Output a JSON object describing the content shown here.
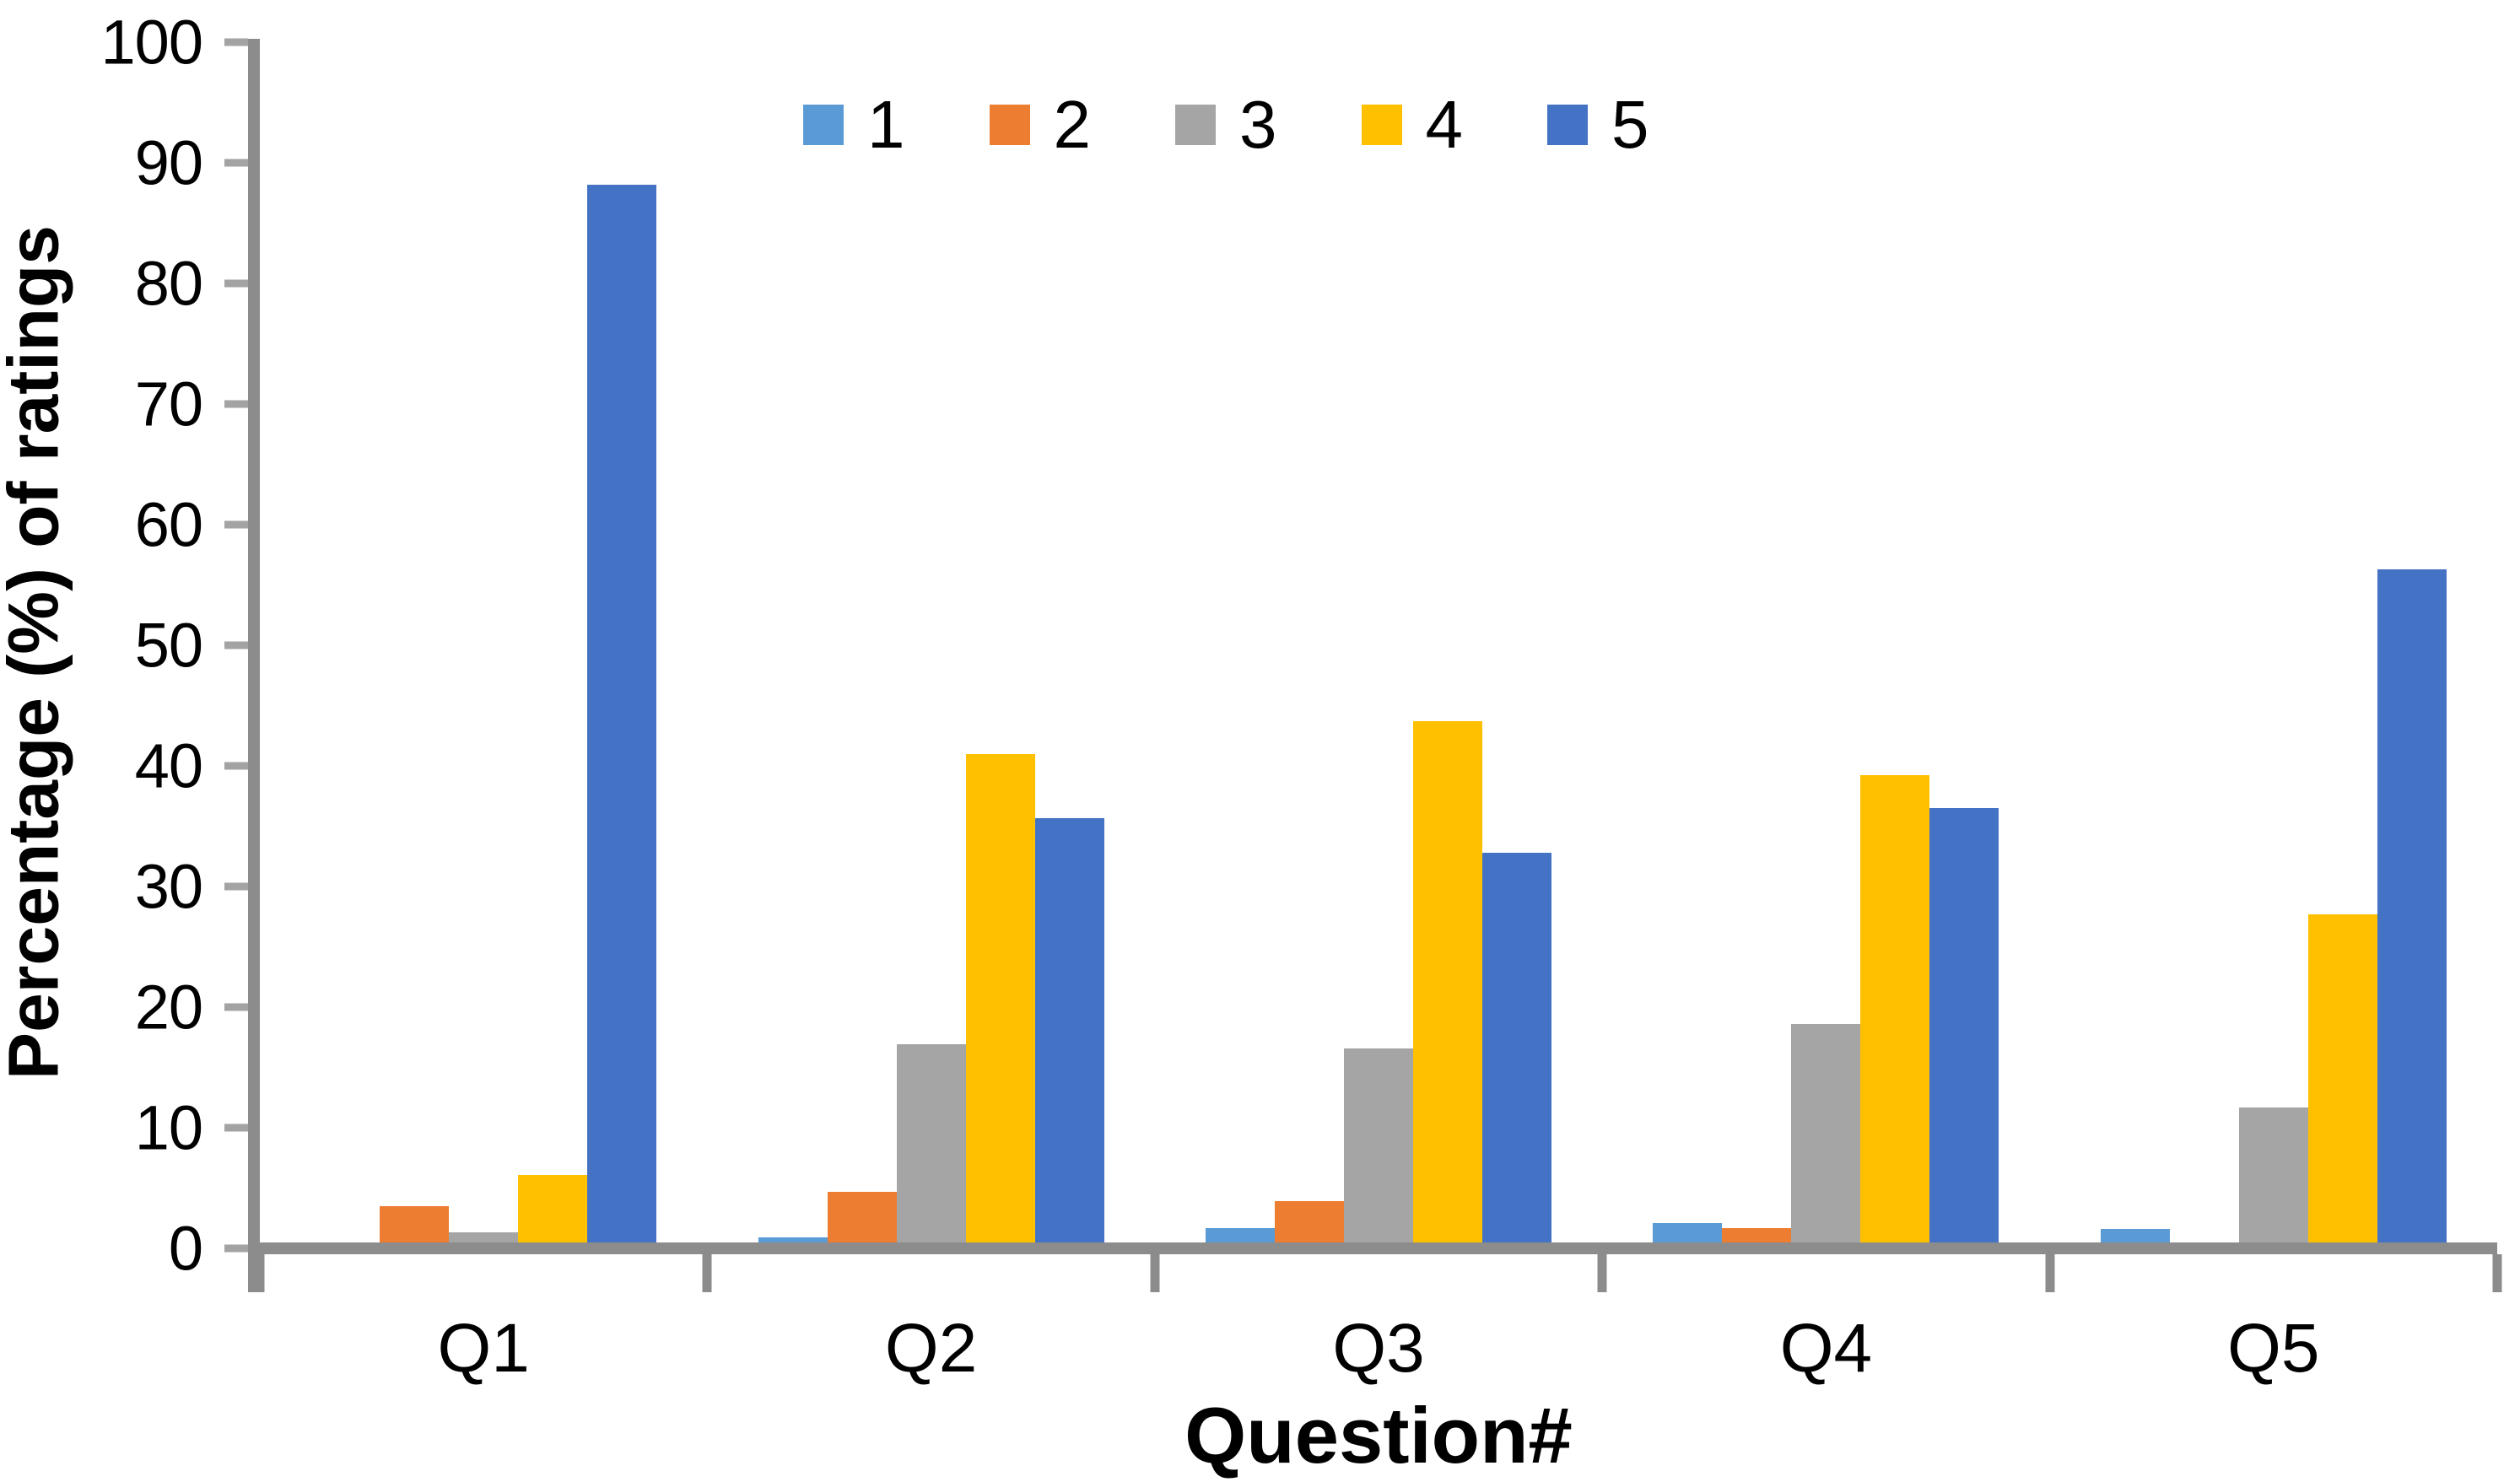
{
  "chart_data": {
    "type": "bar",
    "title": "",
    "categories": [
      "Q1",
      "Q2",
      "Q3",
      "Q4",
      "Q5"
    ],
    "series": [
      {
        "name": "1",
        "color": "#5B9BD5",
        "values": [
          0.5,
          0.9,
          1.7,
          2.1,
          1.6
        ]
      },
      {
        "name": "2",
        "color": "#ED7D31",
        "values": [
          3.5,
          4.7,
          3.9,
          1.7,
          0.3
        ]
      },
      {
        "name": "3",
        "color": "#A5A5A5",
        "values": [
          1.3,
          16.9,
          16.6,
          18.6,
          11.7
        ]
      },
      {
        "name": "4",
        "color": "#FFC000",
        "values": [
          6.1,
          41.0,
          43.7,
          39.2,
          27.7
        ]
      },
      {
        "name": "5",
        "color": "#4472C4",
        "values": [
          88.2,
          35.7,
          32.8,
          36.5,
          56.3
        ]
      }
    ],
    "xlabel": "Question#",
    "ylabel": "Percentage (%) of ratings",
    "ylim": [
      0,
      100
    ],
    "y_ticks": [
      0,
      10,
      20,
      30,
      40,
      50,
      60,
      70,
      80,
      90,
      100
    ],
    "legend_position": "top-center",
    "grid": false,
    "axis_color": "#8C8C8C"
  }
}
